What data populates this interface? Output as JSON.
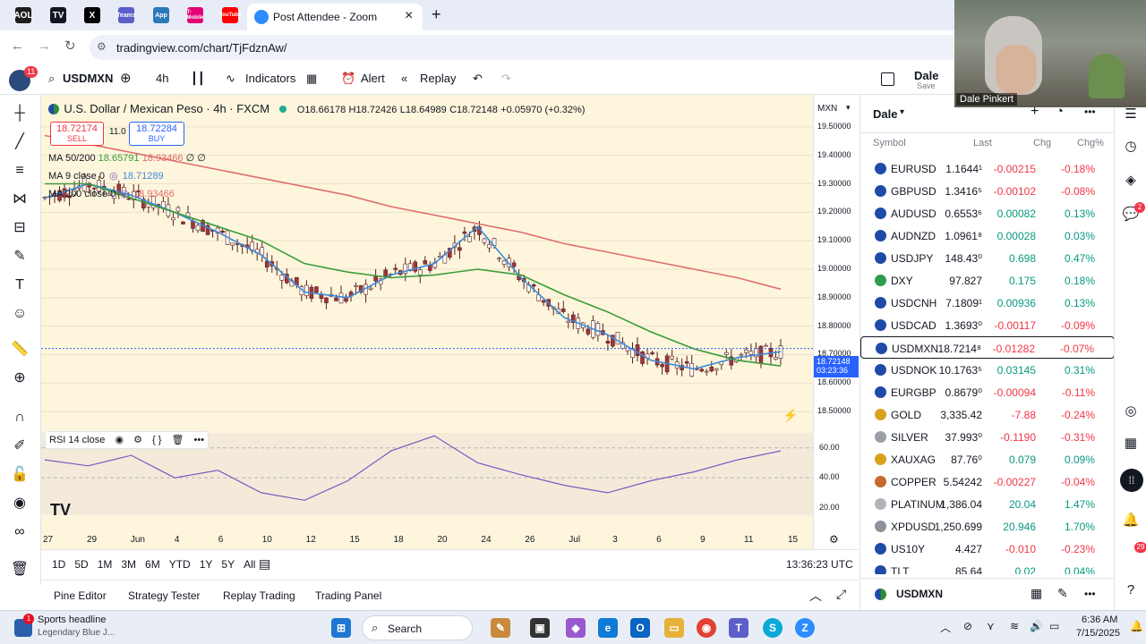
{
  "browser": {
    "tab_title": "Post Attendee - Zoom",
    "tab_close": "×",
    "new_tab": "+",
    "url": "tradingview.com/chart/TjFdznAw/",
    "tab_icons": [
      "AOL",
      "TV",
      "X",
      "Teams",
      "App",
      "T-Mobile",
      "YouTube"
    ]
  },
  "toolbar": {
    "notifications": "11",
    "symbol": "USDMXN",
    "interval": "4h",
    "indicators": "Indicators",
    "alert": "Alert",
    "replay": "Replay",
    "layout_name": "Dale",
    "layout_sub": "Save"
  },
  "chart": {
    "title": "U.S. Dollar / Mexican Peso · 4h · FXCM",
    "ohlc": {
      "open": "O18.66178",
      "high": "H18.72426",
      "low": "L18.64989",
      "close": "C18.72148",
      "change": "+0.05970 (+0.32%)"
    },
    "sell_price": "18.72174",
    "sell_label": "SELL",
    "spread": "11.0",
    "buy_price": "18.72284",
    "buy_label": "BUY",
    "ma_50_200": {
      "label": "MA 50/200",
      "v1": "18.65791",
      "v2": "18.93466",
      "v3": "∅ ∅"
    },
    "ma_9": {
      "label": "MA 9 close 0",
      "v": "18.71289"
    },
    "ma_200": {
      "label": "MA 200 close 0",
      "v": "18.93466"
    },
    "rsi_label": "RSI 14 close",
    "currency": "MXN",
    "price_ticks": [
      "19.50000",
      "19.40000",
      "19.30000",
      "19.20000",
      "19.10000",
      "19.00000",
      "18.90000",
      "18.80000",
      "18.70000",
      "18.60000",
      "18.50000"
    ],
    "current_price": "18.72148",
    "countdown": "03:23:36",
    "rsi_ticks": [
      "60.00",
      "40.00",
      "20.00"
    ],
    "time_ticks": [
      "27",
      "29",
      "Jun",
      "4",
      "6",
      "10",
      "12",
      "15",
      "18",
      "20",
      "24",
      "26",
      "Jul",
      "3",
      "6",
      "9",
      "11",
      "15"
    ],
    "colors": {
      "bg": "#fdf6dc",
      "up": "#ffffff",
      "down": "#a0353a",
      "ma9": "#3d8ad9",
      "ma50": "#3a9c3a",
      "ma200": "#e06d6d",
      "rsi": "#7e57c2",
      "rsi_ma": "#e6c84a"
    }
  },
  "chart_data": {
    "type": "line",
    "x": [
      "May 27",
      "May 29",
      "Jun 2",
      "Jun 4",
      "Jun 6",
      "Jun 10",
      "Jun 12",
      "Jun 15",
      "Jun 18",
      "Jun 20",
      "Jun 24",
      "Jun 26",
      "Jul 1",
      "Jul 3",
      "Jul 6",
      "Jul 9",
      "Jul 11",
      "Jul 15"
    ],
    "series": [
      {
        "name": "MA 9 close 0",
        "values": [
          19.25,
          19.3,
          19.26,
          19.2,
          19.13,
          19.05,
          18.92,
          18.9,
          18.98,
          19.02,
          19.15,
          18.97,
          18.83,
          18.77,
          18.68,
          18.65,
          18.69,
          18.71
        ]
      },
      {
        "name": "MA 50/200",
        "values": [
          19.3,
          19.3,
          19.25,
          19.2,
          19.15,
          19.1,
          19.02,
          18.99,
          18.97,
          18.98,
          19.0,
          18.98,
          18.91,
          18.85,
          18.78,
          18.72,
          18.68,
          18.66
        ]
      },
      {
        "name": "MA 200 close 0",
        "values": [
          19.47,
          19.44,
          19.41,
          19.38,
          19.35,
          19.32,
          19.29,
          19.26,
          19.22,
          19.19,
          19.16,
          19.13,
          19.09,
          19.06,
          19.03,
          19.0,
          18.97,
          18.93
        ]
      }
    ],
    "ylim": [
      18.45,
      19.55
    ],
    "rsi": {
      "name": "RSI 14 close",
      "values": [
        52,
        48,
        55,
        40,
        45,
        30,
        25,
        38,
        58,
        68,
        50,
        42,
        35,
        30,
        38,
        44,
        52,
        58
      ],
      "ylim": [
        15,
        70
      ]
    }
  },
  "ranges": [
    "1D",
    "5D",
    "1M",
    "3M",
    "6M",
    "YTD",
    "1Y",
    "5Y",
    "All"
  ],
  "clock": "13:36:23 UTC",
  "panels": [
    "Pine Editor",
    "Strategy Tester",
    "Replay Trading",
    "Trading Panel"
  ],
  "watchlist": {
    "name": "Dale",
    "columns": [
      "Symbol",
      "Last",
      "Chg",
      "Chg%"
    ],
    "rows": [
      {
        "symbol": "EURUSD",
        "last": "1.1644¹",
        "chg": "-0.00215",
        "pct": "-0.18%",
        "icon": "#1f4aa8"
      },
      {
        "symbol": "GBPUSD",
        "last": "1.3416⁵",
        "chg": "-0.00102",
        "pct": "-0.08%",
        "icon": "#1f4aa8"
      },
      {
        "symbol": "AUDUSD",
        "last": "0.6553⁶",
        "chg": "0.00082",
        "pct": "0.13%",
        "icon": "#1f4aa8"
      },
      {
        "symbol": "AUDNZD",
        "last": "1.0961⁸",
        "chg": "0.00028",
        "pct": "0.03%",
        "icon": "#1f4aa8"
      },
      {
        "symbol": "USDJPY",
        "last": "148.43⁰",
        "chg": "0.698",
        "pct": "0.47%",
        "icon": "#1f4aa8"
      },
      {
        "symbol": "DXY",
        "last": "97.827",
        "chg": "0.175",
        "pct": "0.18%",
        "icon": "#2e9c4a"
      },
      {
        "symbol": "USDCNH",
        "last": "7.1809¹",
        "chg": "0.00936",
        "pct": "0.13%",
        "icon": "#1f4aa8"
      },
      {
        "symbol": "USDCAD",
        "last": "1.3693⁰",
        "chg": "-0.00117",
        "pct": "-0.09%",
        "icon": "#1f4aa8"
      },
      {
        "symbol": "USDMXN",
        "last": "18.7214⁸",
        "chg": "-0.01282",
        "pct": "-0.07%",
        "icon": "#1f4aa8"
      },
      {
        "symbol": "USDNOK",
        "last": "10.1763⁵",
        "chg": "0.03145",
        "pct": "0.31%",
        "icon": "#1f4aa8"
      },
      {
        "symbol": "EURGBP",
        "last": "0.8679⁰",
        "chg": "-0.00094",
        "pct": "-0.11%",
        "icon": "#1f4aa8"
      },
      {
        "symbol": "GOLD",
        "last": "3,335.42",
        "chg": "-7.88",
        "pct": "-0.24%",
        "icon": "#d9a21b"
      },
      {
        "symbol": "SILVER",
        "last": "37.993⁰",
        "chg": "-0.1190",
        "pct": "-0.31%",
        "icon": "#9aa0a6"
      },
      {
        "symbol": "XAUXAG",
        "last": "87.76⁰",
        "chg": "0.079",
        "pct": "0.09%",
        "icon": "#d9a21b"
      },
      {
        "symbol": "COPPER",
        "last": "5.54242",
        "chg": "-0.00227",
        "pct": "-0.04%",
        "icon": "#c46a2a"
      },
      {
        "symbol": "PLATINUM",
        "last": "1,386.04",
        "chg": "20.04",
        "pct": "1.47%",
        "icon": "#b0b5bc"
      },
      {
        "symbol": "XPDUSD",
        "last": "1,250.699",
        "chg": "20.946",
        "pct": "1.70%",
        "icon": "#8c9299"
      },
      {
        "symbol": "US10Y",
        "last": "4.427",
        "chg": "-0.010",
        "pct": "-0.23%",
        "icon": "#1f4aa8"
      },
      {
        "symbol": "TLT",
        "last": "85.64",
        "chg": "0.02",
        "pct": "0.04%",
        "icon": "#1f4aa8"
      }
    ],
    "footer_symbol": "USDMXN",
    "up_color": "#089981",
    "down_color": "#f23645"
  },
  "right_strip": {
    "badge_chat": "2",
    "badge_bell": "29"
  },
  "webcam": {
    "name": "Dale Pinkert"
  },
  "taskbar": {
    "news_badge": "1",
    "news_title": "Sports headline",
    "news_sub": "Legendary Blue J...",
    "search": "Search",
    "time": "6:36 AM",
    "date": "7/15/2025"
  }
}
